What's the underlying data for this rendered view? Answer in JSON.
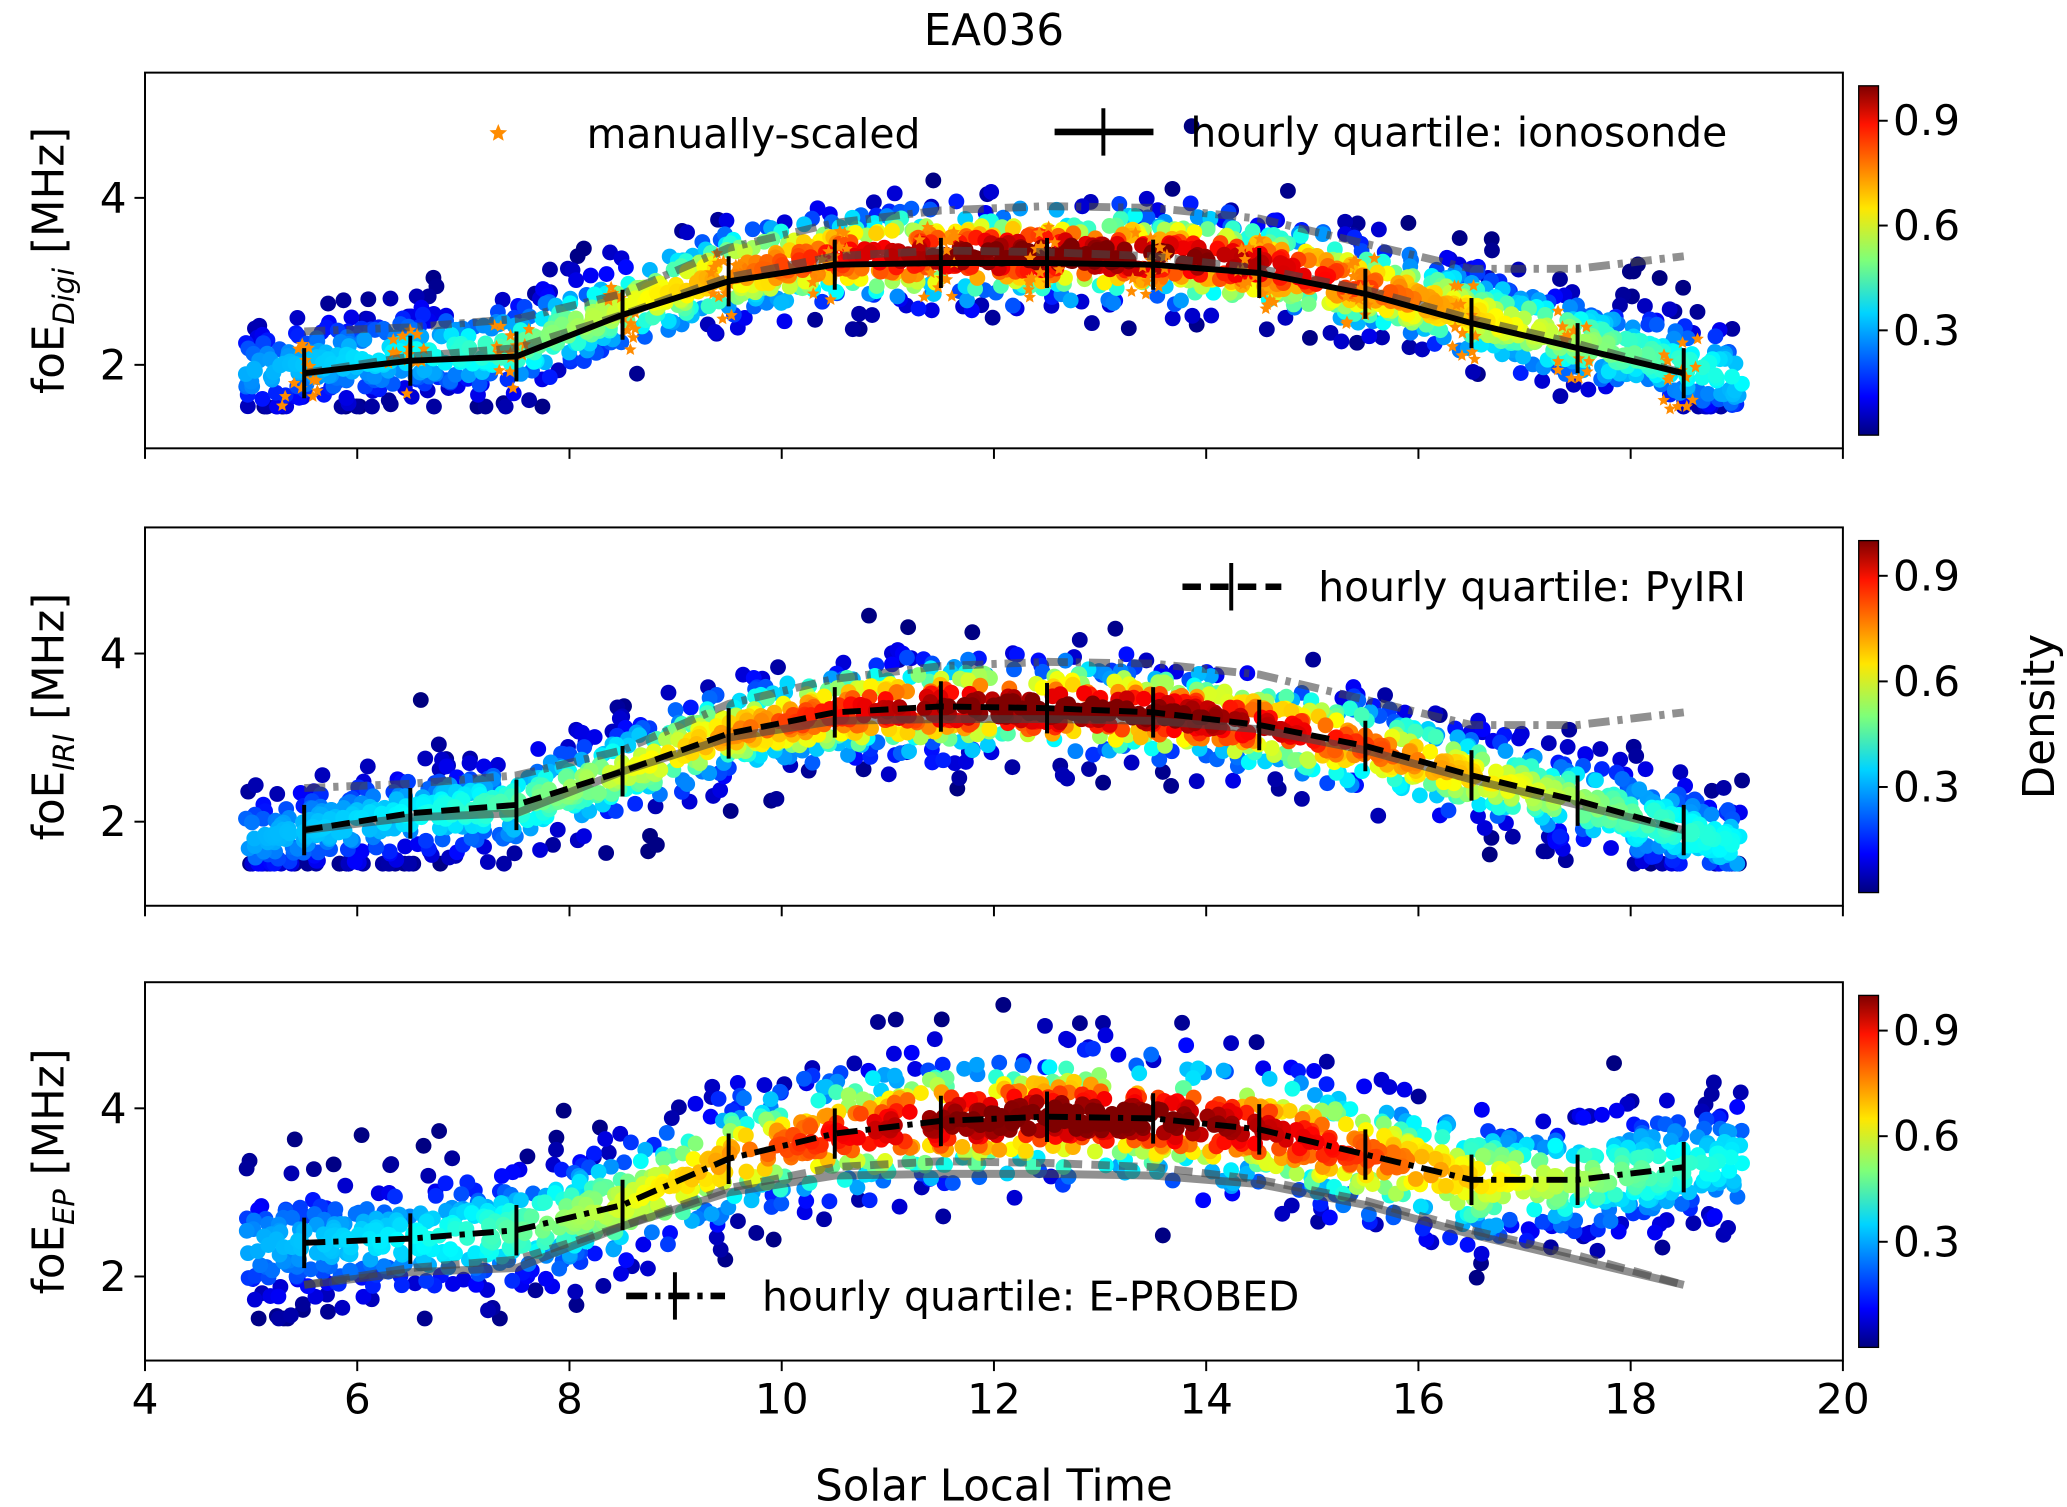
{
  "chart_data": {
    "type": "scatter",
    "title": "EA036",
    "xlabel": "Solar Local Time",
    "xlim": [
      4,
      20
    ],
    "xticks": [
      4,
      6,
      8,
      10,
      12,
      14,
      16,
      18,
      20
    ],
    "grid": false,
    "hours": [
      5.5,
      6.5,
      7.5,
      8.5,
      9.5,
      10.5,
      11.5,
      12.5,
      13.5,
      14.5,
      15.5,
      16.5,
      17.5,
      18.5
    ],
    "series": {
      "ionosonde": [
        1.9,
        2.05,
        2.1,
        2.6,
        3.0,
        3.2,
        3.22,
        3.22,
        3.2,
        3.1,
        2.85,
        2.5,
        2.2,
        1.9
      ],
      "pyiri": [
        1.9,
        2.1,
        2.2,
        2.6,
        3.05,
        3.3,
        3.37,
        3.35,
        3.3,
        3.15,
        2.9,
        2.55,
        2.25,
        1.9
      ],
      "eprobed": [
        2.4,
        2.45,
        2.55,
        2.85,
        3.4,
        3.7,
        3.85,
        3.9,
        3.88,
        3.75,
        3.45,
        3.15,
        3.15,
        3.3
      ]
    },
    "colorbar": {
      "label": "Density",
      "ticks": [
        "0.3",
        "0.6",
        "0.9"
      ],
      "range": [
        0,
        1
      ],
      "colormap": "jet"
    },
    "panels": [
      {
        "id": "digi",
        "ylabel_main": "foE",
        "ylabel_sub": "Digi",
        "ylabel_unit": " [MHz]",
        "ylim": [
          1,
          5.5
        ],
        "yticks": [
          "2",
          "4"
        ],
        "main_series": "ionosonde",
        "style": "solid",
        "overlays": [
          {
            "series": "pyiri",
            "style": "dashed"
          },
          {
            "series": "eprobed",
            "style": "dashdot"
          }
        ],
        "manual_points": true,
        "legend": [
          {
            "marker": "star",
            "color": "#ff8c00",
            "label": "manually-scaled"
          },
          {
            "marker": "solid-errorbar",
            "label": "hourly quartile: ionosonde"
          }
        ],
        "colorbar_label": ""
      },
      {
        "id": "iri",
        "ylabel_main": "foE",
        "ylabel_sub": "IRI",
        "ylabel_unit": " [MHz]",
        "ylim": [
          1,
          5.5
        ],
        "yticks": [
          "2",
          "4"
        ],
        "main_series": "pyiri",
        "style": "dashed",
        "overlays": [
          {
            "series": "ionosonde",
            "style": "solid"
          },
          {
            "series": "eprobed",
            "style": "dashdot"
          }
        ],
        "legend": [
          {
            "marker": "dashed-errorbar",
            "label": "hourly quartile: PyIRI"
          }
        ],
        "colorbar_label": "Density"
      },
      {
        "id": "ep",
        "ylabel_main": "foE",
        "ylabel_sub": "EP",
        "ylabel_unit": " [MHz]",
        "ylim": [
          1,
          5.5
        ],
        "yticks": [
          "2",
          "4"
        ],
        "main_series": "eprobed",
        "style": "dashdot",
        "overlays": [
          {
            "series": "ionosonde",
            "style": "solid"
          },
          {
            "series": "pyiri",
            "style": "dashed"
          }
        ],
        "legend": [
          {
            "marker": "dashdot-errorbar",
            "label": "hourly quartile: E-PROBED"
          }
        ],
        "colorbar_label": ""
      }
    ]
  }
}
